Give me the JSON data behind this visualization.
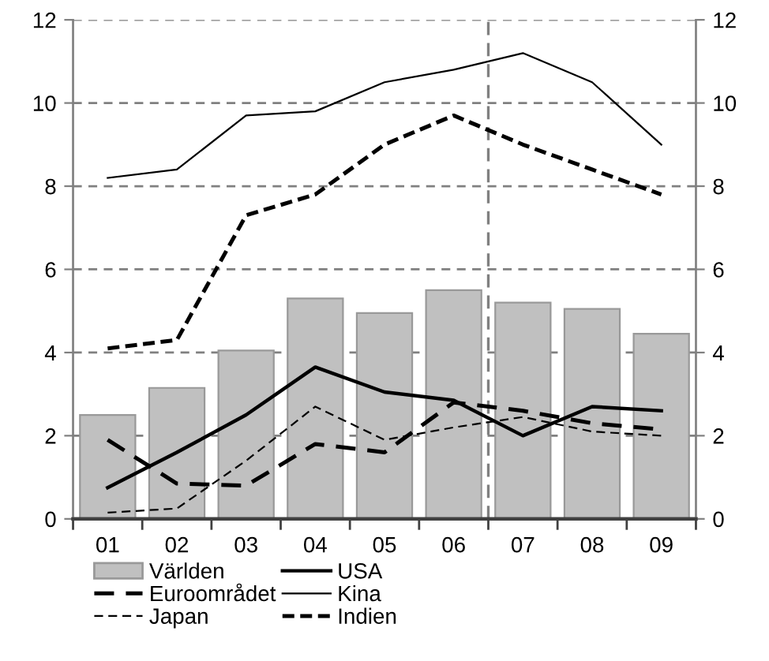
{
  "chart_data": {
    "type": "bar",
    "x": [
      1,
      2,
      3,
      4,
      5,
      6,
      7,
      8,
      9
    ],
    "xlim": [
      0.5,
      9.5
    ],
    "xticks": [
      {
        "value": 1,
        "label": "01"
      },
      {
        "value": 2,
        "label": "02"
      },
      {
        "value": 3,
        "label": "03"
      },
      {
        "value": 4,
        "label": "04"
      },
      {
        "value": 5,
        "label": "05"
      },
      {
        "value": 6,
        "label": "06"
      },
      {
        "value": 7,
        "label": "07"
      },
      {
        "value": 8,
        "label": "08"
      },
      {
        "value": 9,
        "label": "09"
      },
      {
        "value": 0.5,
        "label": null
      },
      {
        "value": 1.5,
        "label": null
      },
      {
        "value": 2.5,
        "label": null
      },
      {
        "value": 3.5,
        "label": null
      },
      {
        "value": 4.5,
        "label": null
      },
      {
        "value": 5.5,
        "label": null
      },
      {
        "value": 6.5,
        "label": null
      },
      {
        "value": 7.5,
        "label": null
      },
      {
        "value": 8.5,
        "label": null
      },
      {
        "value": 9.5,
        "label": null
      }
    ],
    "ylim": [
      0,
      12
    ],
    "yticks": [
      0,
      2,
      4,
      6,
      8,
      10,
      12
    ],
    "y2lim": [
      0,
      12
    ],
    "y2ticks": [
      0,
      2,
      4,
      6,
      8,
      10,
      12
    ],
    "grid": "y",
    "legend": "bottom",
    "ref_lines": [
      {
        "axis": "x",
        "value": 6.5,
        "color": "#808080",
        "line_style": "dashed"
      }
    ],
    "series": [
      {
        "name": "Världen",
        "color": "#c0c0c0",
        "values": [
          2.5,
          3.15,
          4.05,
          5.3,
          4.95,
          5.5,
          5.2,
          5.05,
          4.45
        ]
      },
      {
        "name": "Euroområdet",
        "type": "line",
        "color": "#000000",
        "line_style": "dashed",
        "values": [
          1.9,
          0.85,
          0.8,
          1.8,
          1.6,
          2.8,
          2.6,
          2.3,
          2.15
        ]
      },
      {
        "name": "Japan",
        "type": "line",
        "color": "#000000",
        "line_style": "dashed",
        "values": [
          0.15,
          0.25,
          1.4,
          2.7,
          1.9,
          2.2,
          2.45,
          2.1,
          2.0
        ]
      },
      {
        "name": "USA",
        "type": "line",
        "color": "#000000",
        "line_style": "solid",
        "values": [
          0.75,
          1.6,
          2.5,
          3.65,
          3.05,
          2.85,
          2.0,
          2.7,
          2.6
        ]
      },
      {
        "name": "Kina",
        "type": "line",
        "color": "#000000",
        "line_style": "solid",
        "values": [
          8.2,
          8.4,
          9.7,
          9.8,
          10.5,
          10.8,
          11.2,
          10.5,
          9.0
        ]
      },
      {
        "name": "Indien",
        "type": "line",
        "color": "#000000",
        "line_style": "dotted",
        "values": [
          4.1,
          4.3,
          7.3,
          7.8,
          9.0,
          9.7,
          9.0,
          8.4,
          7.8
        ]
      }
    ]
  }
}
